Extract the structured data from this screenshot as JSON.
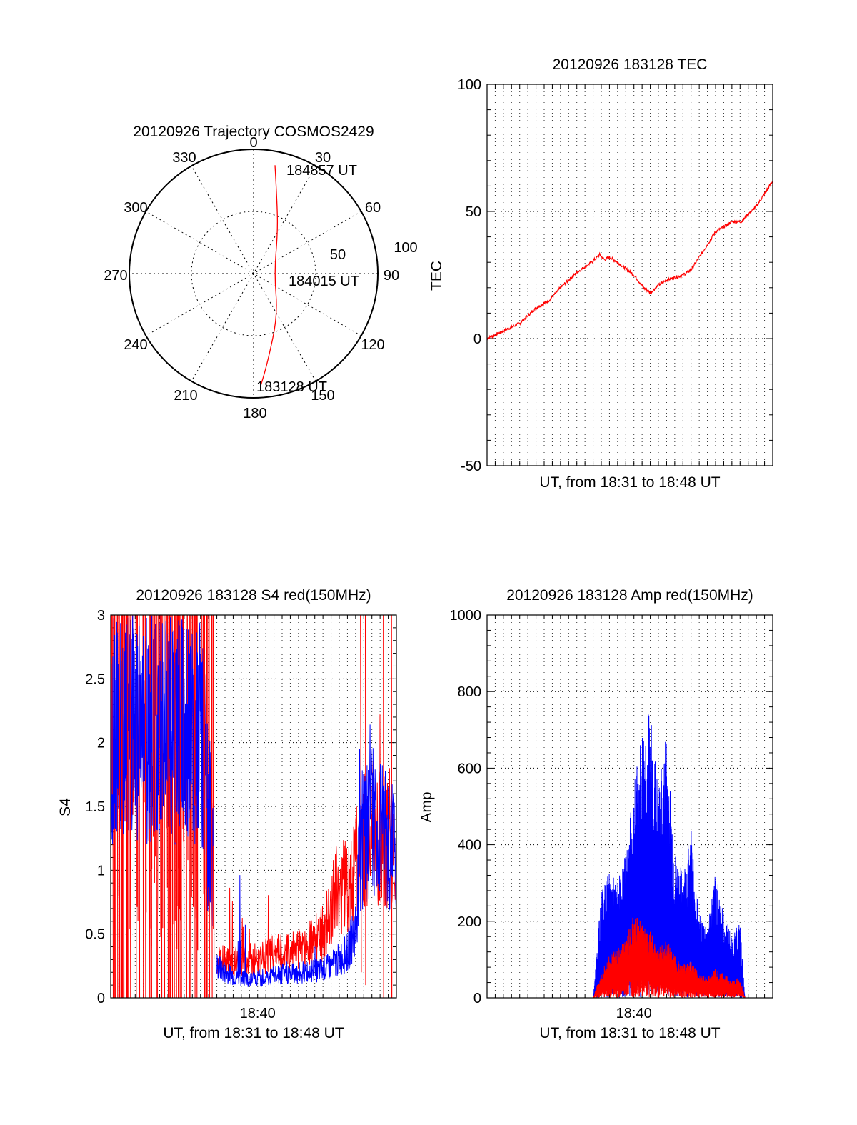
{
  "colors": {
    "red": "#ff0000",
    "blue": "#0000ff",
    "axis": "#000000",
    "grid": "#000000"
  },
  "chart_data": [
    {
      "type": "polar",
      "title": "20120926 Trajectory COSMOS2429",
      "angle_labels": [
        "0",
        "30",
        "60",
        "90",
        "120",
        "150",
        "180",
        "210",
        "240",
        "270",
        "300",
        "330"
      ],
      "radial_labels": [
        "100",
        "50"
      ],
      "annotations": [
        "184857 UT",
        "184015 UT",
        "183128 UT"
      ],
      "trajectory": {
        "color": "red",
        "points": [
          {
            "az": 11.2,
            "el": 10,
            "time": "184857 UT"
          },
          {
            "az": 18,
            "el": 35
          },
          {
            "az": 30,
            "el": 55
          },
          {
            "az": 90,
            "el": 75,
            "time": "184015 UT"
          },
          {
            "az": 150,
            "el": 55
          },
          {
            "az": 171,
            "el": 25
          },
          {
            "az": 176.5,
            "el": 8,
            "time": "183128 UT"
          }
        ]
      }
    },
    {
      "type": "line",
      "title": "20120926 183128 TEC",
      "xlabel": "UT, from 18:31 to 18:48 UT",
      "ylabel": "TEC",
      "ylim": [
        -50,
        100
      ],
      "yticks": [
        "100",
        "50",
        "0",
        "-50"
      ],
      "xlim": [
        0,
        17.5
      ],
      "grid": true,
      "series": [
        {
          "color": "red",
          "x": [
            0,
            1,
            2,
            3,
            3.8,
            4.5,
            5.5,
            6.4,
            6.9,
            7.2,
            7.5,
            8,
            9,
            9.6,
            10,
            10.5,
            11,
            12,
            12.5,
            13,
            14,
            15,
            15.6,
            16,
            16.5,
            17,
            17.5
          ],
          "y": [
            0,
            3,
            6,
            12,
            15,
            20,
            26,
            30,
            33,
            31,
            32,
            30,
            25,
            20,
            18,
            21,
            23,
            25,
            27,
            32,
            42,
            46,
            46,
            49,
            52,
            57,
            62
          ]
        }
      ]
    },
    {
      "type": "line",
      "title": "20120926 183128 S4 red(150MHz)",
      "xlabel": "UT, from 18:31 to 18:48 UT",
      "ylabel": "S4",
      "ylim": [
        0,
        3
      ],
      "yticks": [
        "3",
        "2.5",
        "2",
        "1.5",
        "1",
        "0.5",
        "0"
      ],
      "xticks": [
        "18:40"
      ],
      "xlim": [
        0,
        17.5
      ],
      "grid": true,
      "series": [
        {
          "color": "red",
          "x": [
            6.5,
            7,
            8,
            9,
            10,
            11,
            12,
            13,
            13.5,
            14,
            14.5,
            15,
            15.3,
            16,
            17,
            17.5
          ],
          "y": [
            0.3,
            0.28,
            0.3,
            0.3,
            0.35,
            0.35,
            0.4,
            0.5,
            0.7,
            0.9,
            0.85,
            1.0,
            1.2,
            1.3,
            1.2,
            1.1
          ]
        },
        {
          "color": "blue",
          "x": [
            6.5,
            7,
            8,
            9,
            10,
            11,
            12,
            13,
            13.5,
            14,
            14.5,
            15,
            15.3,
            16,
            17,
            17.5
          ],
          "y": [
            0.25,
            0.2,
            0.15,
            0.15,
            0.18,
            0.2,
            0.2,
            0.22,
            0.25,
            0.3,
            0.35,
            0.55,
            1.2,
            1.4,
            1.2,
            1.15
          ]
        }
      ]
    },
    {
      "type": "line",
      "title": "20120926 183128 Amp red(150MHz)",
      "xlabel": "UT, from 18:31 to 18:48 UT",
      "ylabel": "Amp",
      "ylim": [
        0,
        1000
      ],
      "yticks": [
        "1000",
        "800",
        "600",
        "400",
        "200",
        "0"
      ],
      "xticks": [
        "18:40"
      ],
      "xlim": [
        0,
        17.5
      ],
      "grid": true,
      "series": [
        {
          "color": "blue",
          "x": [
            0,
            6.5,
            7,
            7.5,
            8,
            8.5,
            9,
            9.5,
            10,
            10.5,
            11,
            11.5,
            12,
            12.5,
            13,
            13.5,
            14,
            14.5,
            15,
            15.5,
            15.8,
            16,
            17.5
          ],
          "y": [
            0,
            0,
            250,
            300,
            280,
            350,
            500,
            650,
            700,
            500,
            650,
            350,
            300,
            400,
            200,
            180,
            300,
            200,
            150,
            180,
            0,
            0,
            0
          ]
        },
        {
          "color": "red",
          "x": [
            0,
            6.5,
            7,
            7.5,
            8,
            8.5,
            9,
            9.5,
            10,
            10.5,
            11,
            11.5,
            12,
            12.5,
            13,
            13.5,
            14,
            14.5,
            15,
            15.5,
            15.8,
            16,
            17.5
          ],
          "y": [
            0,
            0,
            60,
            100,
            120,
            140,
            200,
            180,
            160,
            120,
            140,
            100,
            80,
            90,
            60,
            50,
            70,
            60,
            40,
            50,
            0,
            0,
            0
          ]
        }
      ]
    }
  ]
}
